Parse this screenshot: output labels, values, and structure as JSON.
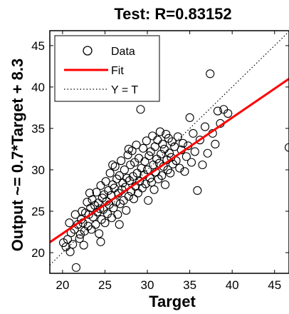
{
  "chart_data": {
    "type": "scatter",
    "title": "Test: R=0.83152",
    "xlabel": "Target",
    "ylabel": "Output ~= 0.7*Target + 8.3",
    "xlim": [
      18.5,
      46.7
    ],
    "ylim": [
      17.5,
      46.8
    ],
    "xticks": [
      20,
      25,
      30,
      35,
      40,
      45
    ],
    "yticks": [
      20,
      25,
      30,
      35,
      40,
      45
    ],
    "legend": {
      "position": "top-left",
      "entries": [
        {
          "label": "Data",
          "style": "circle",
          "color": "#000000"
        },
        {
          "label": "Fit",
          "style": "line",
          "color": "#ff0000"
        },
        {
          "label": "Y = T",
          "style": "dotted",
          "color": "#000000"
        }
      ]
    },
    "fit": {
      "slope": 0.7,
      "intercept": 8.3
    },
    "series": [
      {
        "name": "Data",
        "points": [
          [
            20.1,
            21.2
          ],
          [
            20.4,
            20.7
          ],
          [
            20.6,
            21.6
          ],
          [
            20.9,
            20.1
          ],
          [
            21.0,
            22.4
          ],
          [
            21.2,
            21.0
          ],
          [
            21.4,
            22.8
          ],
          [
            21.6,
            18.2
          ],
          [
            21.8,
            23.4
          ],
          [
            22.0,
            21.7
          ],
          [
            22.1,
            22.2
          ],
          [
            22.2,
            24.0
          ],
          [
            22.3,
            25.0
          ],
          [
            22.4,
            23.6
          ],
          [
            22.6,
            22.6
          ],
          [
            22.7,
            24.8
          ],
          [
            22.9,
            26.1
          ],
          [
            23.0,
            23.2
          ],
          [
            23.1,
            24.6
          ],
          [
            23.3,
            25.4
          ],
          [
            23.4,
            22.8
          ],
          [
            23.5,
            26.4
          ],
          [
            23.6,
            24.3
          ],
          [
            23.8,
            25.7
          ],
          [
            23.9,
            23.4
          ],
          [
            24.0,
            27.3
          ],
          [
            24.1,
            24.9
          ],
          [
            24.2,
            26.0
          ],
          [
            24.3,
            22.3
          ],
          [
            24.4,
            25.3
          ],
          [
            24.5,
            28.1
          ],
          [
            24.6,
            24.0
          ],
          [
            24.7,
            26.6
          ],
          [
            24.8,
            25.2
          ],
          [
            24.9,
            27.0
          ],
          [
            25.0,
            23.6
          ],
          [
            25.1,
            28.6
          ],
          [
            25.2,
            26.2
          ],
          [
            25.3,
            24.7
          ],
          [
            25.4,
            27.5
          ],
          [
            25.5,
            25.8
          ],
          [
            25.6,
            29.6
          ],
          [
            25.7,
            26.9
          ],
          [
            25.8,
            24.2
          ],
          [
            25.9,
            28.2
          ],
          [
            26.0,
            25.4
          ],
          [
            26.1,
            27.8
          ],
          [
            26.2,
            30.4
          ],
          [
            26.3,
            26.1
          ],
          [
            26.4,
            28.9
          ],
          [
            26.5,
            24.6
          ],
          [
            26.6,
            27.2
          ],
          [
            26.7,
            29.3
          ],
          [
            26.8,
            25.9
          ],
          [
            26.9,
            31.1
          ],
          [
            27.0,
            27.6
          ],
          [
            27.1,
            28.4
          ],
          [
            27.2,
            26.3
          ],
          [
            27.3,
            30.0
          ],
          [
            27.4,
            27.9
          ],
          [
            27.5,
            25.1
          ],
          [
            27.6,
            29.0
          ],
          [
            27.7,
            31.8
          ],
          [
            27.8,
            26.8
          ],
          [
            27.9,
            28.7
          ],
          [
            28.0,
            30.6
          ],
          [
            28.1,
            27.4
          ],
          [
            28.2,
            32.3
          ],
          [
            28.3,
            29.2
          ],
          [
            28.4,
            26.5
          ],
          [
            28.5,
            30.9
          ],
          [
            28.6,
            28.0
          ],
          [
            28.7,
            33.0
          ],
          [
            28.8,
            29.6
          ],
          [
            28.9,
            27.2
          ],
          [
            29.0,
            31.4
          ],
          [
            29.1,
            28.6
          ],
          [
            29.2,
            37.3
          ],
          [
            29.3,
            30.2
          ],
          [
            29.4,
            27.8
          ],
          [
            29.5,
            32.6
          ],
          [
            29.6,
            29.4
          ],
          [
            29.7,
            31.0
          ],
          [
            29.8,
            28.3
          ],
          [
            29.9,
            33.5
          ],
          [
            30.0,
            30.0
          ],
          [
            30.1,
            26.3
          ],
          [
            30.2,
            31.7
          ],
          [
            30.3,
            29.0
          ],
          [
            30.4,
            32.2
          ],
          [
            30.5,
            28.5
          ],
          [
            30.6,
            34.1
          ],
          [
            30.7,
            30.6
          ],
          [
            30.8,
            27.6
          ],
          [
            30.9,
            32.8
          ],
          [
            31.0,
            29.7
          ],
          [
            31.1,
            31.3
          ],
          [
            31.2,
            33.6
          ],
          [
            31.3,
            28.9
          ],
          [
            31.4,
            30.8
          ],
          [
            31.5,
            34.6
          ],
          [
            31.6,
            31.9
          ],
          [
            31.7,
            29.3
          ],
          [
            31.8,
            33.1
          ],
          [
            31.9,
            30.4
          ],
          [
            32.0,
            32.5
          ],
          [
            32.1,
            28.2
          ],
          [
            32.2,
            34.3
          ],
          [
            32.3,
            31.2
          ],
          [
            32.4,
            30.0
          ],
          [
            32.5,
            33.8
          ],
          [
            32.6,
            32.0
          ],
          [
            32.7,
            29.6
          ],
          [
            32.8,
            31.5
          ],
          [
            32.9,
            33.4
          ],
          [
            33.0,
            30.7
          ],
          [
            33.2,
            32.8
          ],
          [
            33.4,
            31.1
          ],
          [
            33.6,
            34.0
          ],
          [
            33.8,
            30.2
          ],
          [
            34.0,
            32.4
          ],
          [
            34.2,
            33.2
          ],
          [
            34.4,
            29.8
          ],
          [
            34.6,
            31.6
          ],
          [
            34.8,
            32.9
          ],
          [
            35.0,
            36.3
          ],
          [
            35.2,
            30.9
          ],
          [
            35.4,
            34.4
          ],
          [
            35.6,
            32.2
          ],
          [
            35.9,
            27.5
          ],
          [
            36.2,
            33.6
          ],
          [
            36.5,
            30.6
          ],
          [
            36.8,
            35.2
          ],
          [
            37.1,
            32.0
          ],
          [
            37.4,
            41.6
          ],
          [
            37.7,
            34.4
          ],
          [
            38.0,
            33.1
          ],
          [
            38.3,
            37.1
          ],
          [
            38.6,
            35.6
          ],
          [
            39.0,
            37.3
          ],
          [
            39.5,
            36.8
          ],
          [
            46.7,
            32.7
          ],
          [
            20.8,
            23.6
          ],
          [
            21.5,
            24.6
          ],
          [
            22.5,
            20.9
          ],
          [
            23.2,
            27.2
          ],
          [
            24.5,
            21.3
          ],
          [
            25.9,
            30.6
          ],
          [
            26.7,
            23.4
          ],
          [
            27.8,
            32.5
          ]
        ]
      }
    ]
  }
}
